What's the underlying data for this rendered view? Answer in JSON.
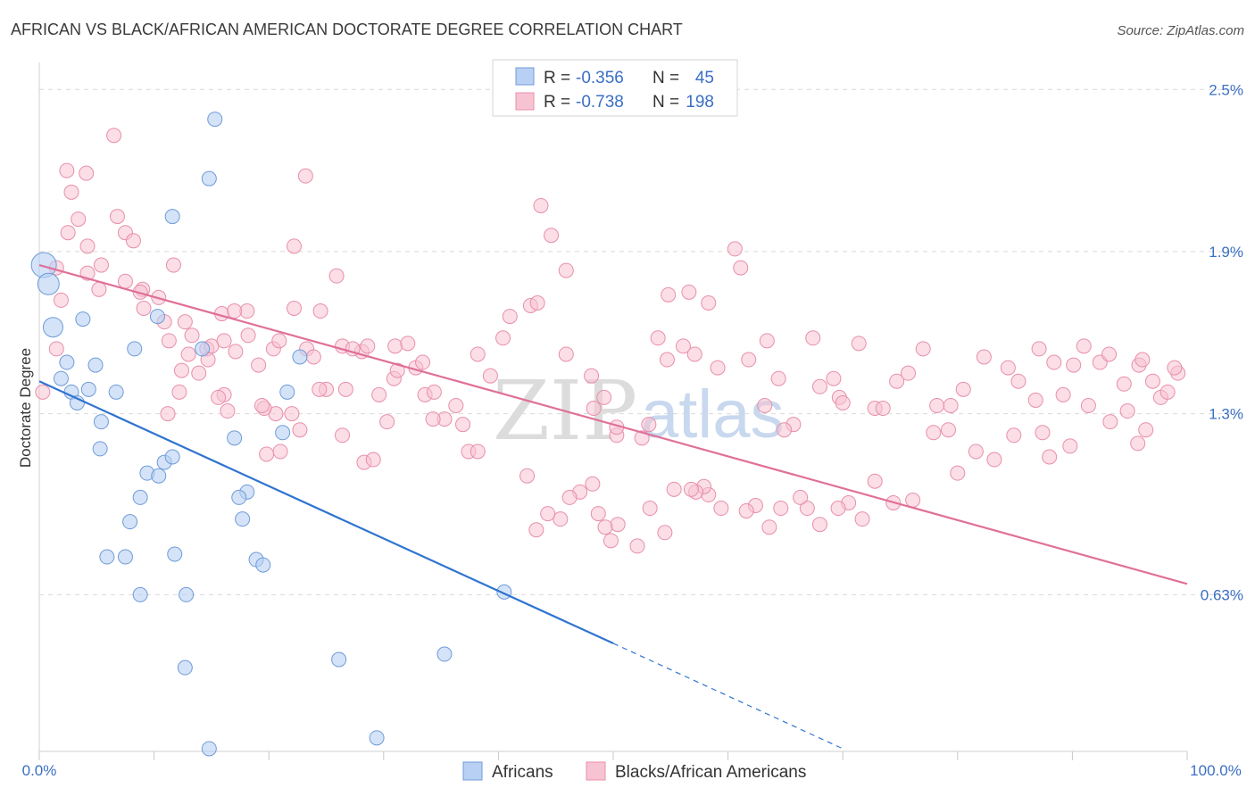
{
  "title": "AFRICAN VS BLACK/AFRICAN AMERICAN DOCTORATE DEGREE CORRELATION CHART",
  "source": "Source: ZipAtlas.com",
  "watermark": {
    "zip": "ZIP",
    "atlas": "atlas"
  },
  "legend": {
    "r_label": "R =",
    "n_label": "N =",
    "rows": [
      {
        "r": "-0.356",
        "n": "45"
      },
      {
        "r": "-0.738",
        "n": "198"
      }
    ]
  },
  "bottom_legend": [
    "Africans",
    "Blacks/African Americans"
  ],
  "colors": {
    "africans_fill": "#b8d0f3",
    "africans_stroke": "#6f9bd8",
    "africans_line": "#2f74d0",
    "blacks_fill": "#f7c3d2",
    "blacks_stroke": "#e88fab",
    "blacks_line": "#e07099",
    "grid": "#d9d9d9",
    "tick_text": "#3b6fc4"
  },
  "chart_data": {
    "type": "scatter",
    "title": "AFRICAN VS BLACK/AFRICAN AMERICAN DOCTORATE DEGREE CORRELATION CHART",
    "xlabel": "",
    "ylabel": "Doctorate Degree",
    "xlim": [
      0,
      100
    ],
    "ylim": [
      0.05,
      2.6
    ],
    "x_tick_labels": [
      "0.0%",
      "100.0%"
    ],
    "y_ticks": [
      0.63,
      1.3,
      1.9,
      2.5
    ],
    "y_tick_labels": [
      "0.63%",
      "1.3%",
      "1.9%",
      "2.5%"
    ],
    "grid": true,
    "legend_position": "top-center",
    "series": [
      {
        "name": "Africans",
        "r": -0.356,
        "n": 45,
        "trend": {
          "x0": 0,
          "y0": 1.42,
          "x1": 50,
          "y1": 0.45,
          "dashed_to_x": 70,
          "dashed_to_y": 0.06
        },
        "points": [
          [
            0.4,
            1.85,
            14
          ],
          [
            0.8,
            1.78,
            12
          ],
          [
            1.2,
            1.62,
            11
          ],
          [
            3.8,
            1.65,
            8
          ],
          [
            2.4,
            1.49,
            8
          ],
          [
            4.9,
            1.48,
            8
          ],
          [
            1.9,
            1.43,
            8
          ],
          [
            2.8,
            1.38,
            8
          ],
          [
            4.3,
            1.39,
            8
          ],
          [
            6.7,
            1.38,
            8
          ],
          [
            3.3,
            1.34,
            8
          ],
          [
            8.3,
            1.54,
            8
          ],
          [
            10.3,
            1.66,
            8
          ],
          [
            14.2,
            1.54,
            8
          ],
          [
            15.3,
            2.39,
            8
          ],
          [
            11.6,
            2.03,
            8
          ],
          [
            14.8,
            2.17,
            8
          ],
          [
            5.4,
            1.27,
            8
          ],
          [
            5.3,
            1.17,
            8
          ],
          [
            9.4,
            1.08,
            8
          ],
          [
            10.4,
            1.07,
            8
          ],
          [
            10.9,
            1.12,
            8
          ],
          [
            11.6,
            1.14,
            8
          ],
          [
            8.8,
            0.99,
            8
          ],
          [
            7.9,
            0.9,
            8
          ],
          [
            5.9,
            0.77,
            8
          ],
          [
            7.5,
            0.77,
            8
          ],
          [
            11.8,
            0.78,
            8
          ],
          [
            17.0,
            1.21,
            8
          ],
          [
            18.1,
            1.01,
            8
          ],
          [
            17.4,
            0.99,
            8
          ],
          [
            17.7,
            0.91,
            8
          ],
          [
            18.9,
            0.76,
            8
          ],
          [
            19.5,
            0.74,
            8
          ],
          [
            21.2,
            1.23,
            8
          ],
          [
            21.6,
            1.38,
            8
          ],
          [
            22.7,
            1.51,
            8
          ],
          [
            8.8,
            0.63,
            8
          ],
          [
            12.8,
            0.63,
            8
          ],
          [
            40.5,
            0.64,
            8
          ],
          [
            35.3,
            0.41,
            8
          ],
          [
            26.1,
            0.39,
            8
          ],
          [
            12.7,
            0.36,
            8
          ],
          [
            14.8,
            0.06,
            8
          ],
          [
            29.4,
            0.1,
            8
          ]
        ]
      },
      {
        "name": "Blacks/African Americans",
        "r": -0.738,
        "n": 198,
        "trend": {
          "x0": 0,
          "y0": 1.85,
          "x1": 100,
          "y1": 0.67
        },
        "points": [
          [
            0.3,
            1.38
          ],
          [
            1.5,
            1.84
          ],
          [
            2.5,
            1.97
          ],
          [
            2.4,
            2.2
          ],
          [
            2.8,
            2.12
          ],
          [
            3.4,
            2.02
          ],
          [
            4.2,
            1.82
          ],
          [
            4.2,
            1.92
          ],
          [
            5.2,
            1.76
          ],
          [
            5.4,
            1.85
          ],
          [
            6.8,
            2.03
          ],
          [
            7.5,
            1.97
          ],
          [
            7.5,
            1.79
          ],
          [
            9.0,
            1.76
          ],
          [
            8.2,
            1.94
          ],
          [
            1.5,
            1.54
          ],
          [
            1.9,
            1.72
          ],
          [
            6.5,
            2.33
          ],
          [
            4.1,
            2.19
          ],
          [
            8.8,
            1.75
          ],
          [
            9.1,
            1.69
          ],
          [
            10.4,
            1.73
          ],
          [
            11.3,
            1.57
          ],
          [
            11.7,
            1.85
          ],
          [
            12.4,
            1.46
          ],
          [
            12.7,
            1.64
          ],
          [
            13.3,
            1.59
          ],
          [
            14.6,
            1.54
          ],
          [
            15.0,
            1.55
          ],
          [
            16.1,
            1.57
          ],
          [
            15.9,
            1.67
          ],
          [
            17.1,
            1.53
          ],
          [
            18.1,
            1.68
          ],
          [
            19.1,
            1.48
          ],
          [
            20.4,
            1.54
          ],
          [
            22.2,
            1.69
          ],
          [
            23.3,
            1.54
          ],
          [
            24.5,
            1.68
          ],
          [
            23.9,
            1.51
          ],
          [
            26.4,
            1.55
          ],
          [
            28.1,
            1.53
          ],
          [
            28.6,
            1.55
          ],
          [
            27.3,
            1.54
          ],
          [
            31.0,
            1.55
          ],
          [
            29.6,
            1.37
          ],
          [
            30.9,
            1.43
          ],
          [
            33.6,
            1.37
          ],
          [
            34.4,
            1.38
          ],
          [
            31.2,
            1.46
          ],
          [
            30.3,
            1.27
          ],
          [
            28.3,
            1.12
          ],
          [
            26.4,
            1.22
          ],
          [
            25.0,
            1.39
          ],
          [
            24.4,
            1.39
          ],
          [
            22.0,
            1.3
          ],
          [
            20.6,
            1.3
          ],
          [
            19.6,
            1.32
          ],
          [
            19.4,
            1.33
          ],
          [
            18.2,
            1.59
          ],
          [
            17.0,
            1.68
          ],
          [
            16.4,
            1.31
          ],
          [
            16.1,
            1.37
          ],
          [
            13.9,
            1.45
          ],
          [
            13.0,
            1.52
          ],
          [
            10.9,
            1.64
          ],
          [
            11.2,
            1.3
          ],
          [
            12.2,
            1.38
          ],
          [
            14.7,
            1.5
          ],
          [
            15.6,
            1.36
          ],
          [
            19.8,
            1.15
          ],
          [
            21.0,
            1.16
          ],
          [
            22.7,
            1.24
          ],
          [
            20.9,
            1.57
          ],
          [
            22.2,
            1.92
          ],
          [
            23.2,
            2.18
          ],
          [
            25.9,
            1.81
          ],
          [
            26.7,
            1.39
          ],
          [
            29.1,
            1.13
          ],
          [
            32.1,
            1.56
          ],
          [
            32.8,
            1.47
          ],
          [
            33.4,
            1.49
          ],
          [
            35.3,
            1.28
          ],
          [
            36.9,
            1.26
          ],
          [
            34.3,
            1.28
          ],
          [
            36.3,
            1.33
          ],
          [
            37.4,
            1.16
          ],
          [
            38.2,
            1.16
          ],
          [
            38.2,
            1.52
          ],
          [
            39.3,
            1.44
          ],
          [
            40.4,
            1.58
          ],
          [
            41.0,
            1.66
          ],
          [
            42.8,
            1.7
          ],
          [
            43.7,
            2.07
          ],
          [
            44.6,
            1.96
          ],
          [
            43.4,
            1.71
          ],
          [
            45.9,
            1.52
          ],
          [
            48.1,
            1.44
          ],
          [
            49.2,
            1.36
          ],
          [
            45.9,
            1.83
          ],
          [
            48.3,
            1.32
          ],
          [
            50.3,
            1.22
          ],
          [
            50.3,
            1.25
          ],
          [
            52.5,
            1.21
          ],
          [
            53.1,
            1.26
          ],
          [
            53.9,
            1.58
          ],
          [
            54.7,
            1.5
          ],
          [
            54.8,
            1.74
          ],
          [
            56.6,
            1.75
          ],
          [
            56.1,
            1.55
          ],
          [
            57.1,
            1.52
          ],
          [
            58.3,
            1.71
          ],
          [
            59.1,
            1.47
          ],
          [
            60.6,
            1.91
          ],
          [
            61.1,
            1.84
          ],
          [
            61.8,
            1.5
          ],
          [
            63.4,
            1.57
          ],
          [
            63.2,
            1.33
          ],
          [
            65.7,
            1.26
          ],
          [
            64.4,
            1.43
          ],
          [
            64.9,
            1.24
          ],
          [
            67.4,
            1.58
          ],
          [
            68.0,
            1.4
          ],
          [
            69.2,
            1.43
          ],
          [
            69.7,
            1.36
          ],
          [
            70.0,
            1.34
          ],
          [
            71.4,
            1.56
          ],
          [
            72.8,
            1.32
          ],
          [
            73.5,
            1.32
          ],
          [
            74.7,
            1.42
          ],
          [
            75.7,
            1.45
          ],
          [
            77.0,
            1.54
          ],
          [
            78.2,
            1.33
          ],
          [
            79.4,
            1.33
          ],
          [
            80.5,
            1.39
          ],
          [
            82.3,
            1.51
          ],
          [
            84.4,
            1.47
          ],
          [
            85.3,
            1.42
          ],
          [
            87.1,
            1.54
          ],
          [
            88.4,
            1.49
          ],
          [
            89.2,
            1.37
          ],
          [
            90.1,
            1.48
          ],
          [
            91.0,
            1.55
          ],
          [
            92.4,
            1.49
          ],
          [
            93.2,
            1.52
          ],
          [
            94.5,
            1.41
          ],
          [
            95.8,
            1.48
          ],
          [
            96.1,
            1.5
          ],
          [
            97.0,
            1.42
          ],
          [
            97.7,
            1.36
          ],
          [
            98.3,
            1.38
          ],
          [
            99.2,
            1.45
          ],
          [
            98.9,
            1.47
          ],
          [
            96.4,
            1.24
          ],
          [
            95.7,
            1.19
          ],
          [
            94.8,
            1.31
          ],
          [
            93.3,
            1.27
          ],
          [
            91.4,
            1.33
          ],
          [
            89.8,
            1.18
          ],
          [
            88.0,
            1.14
          ],
          [
            87.4,
            1.23
          ],
          [
            86.8,
            1.35
          ],
          [
            84.9,
            1.22
          ],
          [
            83.2,
            1.13
          ],
          [
            81.6,
            1.16
          ],
          [
            80.0,
            1.08
          ],
          [
            79.2,
            1.24
          ],
          [
            77.9,
            1.23
          ],
          [
            76.1,
            0.98
          ],
          [
            74.4,
            0.97
          ],
          [
            72.8,
            1.05
          ],
          [
            71.7,
            0.91
          ],
          [
            70.5,
            0.97
          ],
          [
            69.6,
            0.95
          ],
          [
            68.0,
            0.89
          ],
          [
            66.9,
            0.95
          ],
          [
            66.3,
            0.99
          ],
          [
            64.6,
            0.95
          ],
          [
            63.6,
            0.88
          ],
          [
            62.4,
            0.96
          ],
          [
            61.6,
            0.94
          ],
          [
            59.4,
            0.95
          ],
          [
            58.3,
            1.0
          ],
          [
            57.9,
            1.03
          ],
          [
            57.2,
            1.01
          ],
          [
            56.8,
            1.02
          ],
          [
            55.3,
            1.02
          ],
          [
            54.5,
            0.86
          ],
          [
            53.2,
            0.95
          ],
          [
            52.1,
            0.81
          ],
          [
            50.4,
            0.89
          ],
          [
            49.8,
            0.83
          ],
          [
            49.3,
            0.88
          ],
          [
            48.7,
            0.93
          ],
          [
            48.2,
            1.04
          ],
          [
            47.1,
            1.01
          ],
          [
            46.2,
            0.99
          ],
          [
            45.4,
            0.91
          ],
          [
            44.3,
            0.93
          ],
          [
            43.3,
            0.87
          ],
          [
            42.5,
            1.07
          ]
        ]
      }
    ]
  }
}
